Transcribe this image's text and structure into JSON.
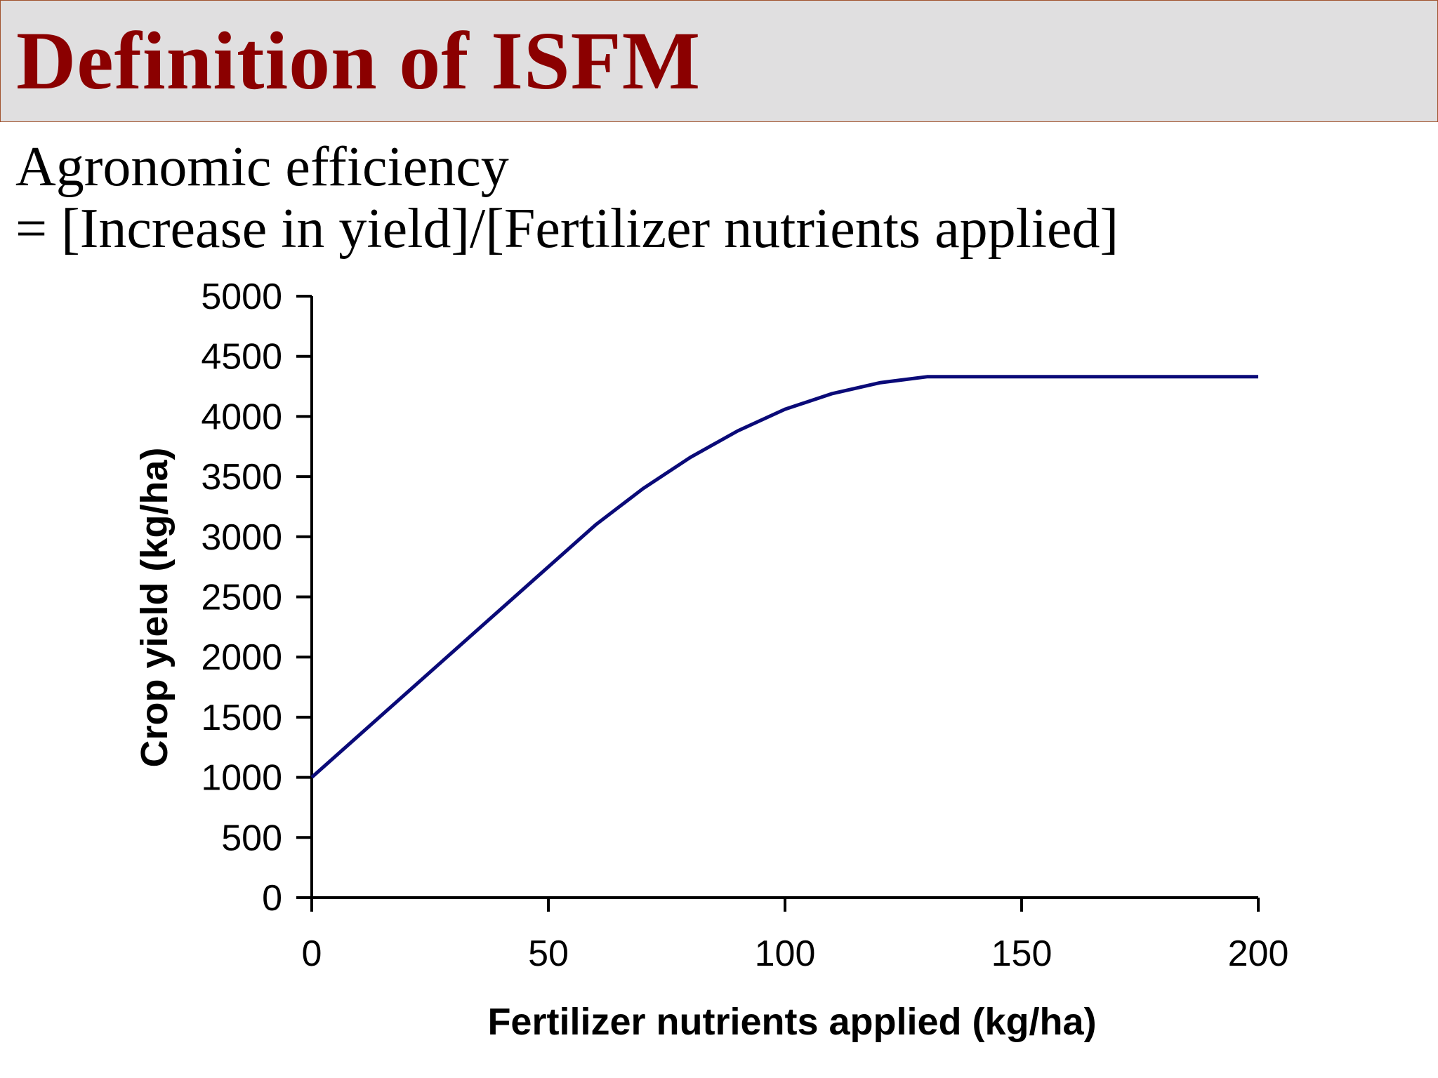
{
  "slide": {
    "title": "Definition of ISFM",
    "line1": "Agronomic efficiency",
    "line2": "= [Increase in yield]/[Fertilizer nutrients applied]"
  },
  "colors": {
    "title": "#8b0000",
    "title_bg": "#e0dfe0",
    "line": "#0a0a78"
  },
  "chart_data": {
    "type": "line",
    "xlabel": "Fertilizer nutrients applied (kg/ha)",
    "ylabel": "Crop yield (kg/ha)",
    "xlim": [
      0,
      200
    ],
    "ylim": [
      0,
      5000
    ],
    "xticks": [
      "0",
      "50",
      "100",
      "150",
      "200"
    ],
    "yticks": [
      "0",
      "500",
      "1000",
      "1500",
      "2000",
      "2500",
      "3000",
      "3500",
      "4000",
      "4500",
      "5000"
    ],
    "grid": false,
    "series": [
      {
        "x": [
          0,
          10,
          20,
          30,
          40,
          50,
          60,
          70,
          80,
          90,
          100,
          110,
          120,
          130,
          140,
          150,
          160,
          170,
          180,
          190,
          200
        ],
        "values": [
          1000,
          1350,
          1700,
          2050,
          2400,
          2750,
          3100,
          3400,
          3660,
          3880,
          4060,
          4190,
          4280,
          4330,
          4330,
          4330,
          4330,
          4330,
          4330,
          4330,
          4330
        ]
      }
    ]
  }
}
